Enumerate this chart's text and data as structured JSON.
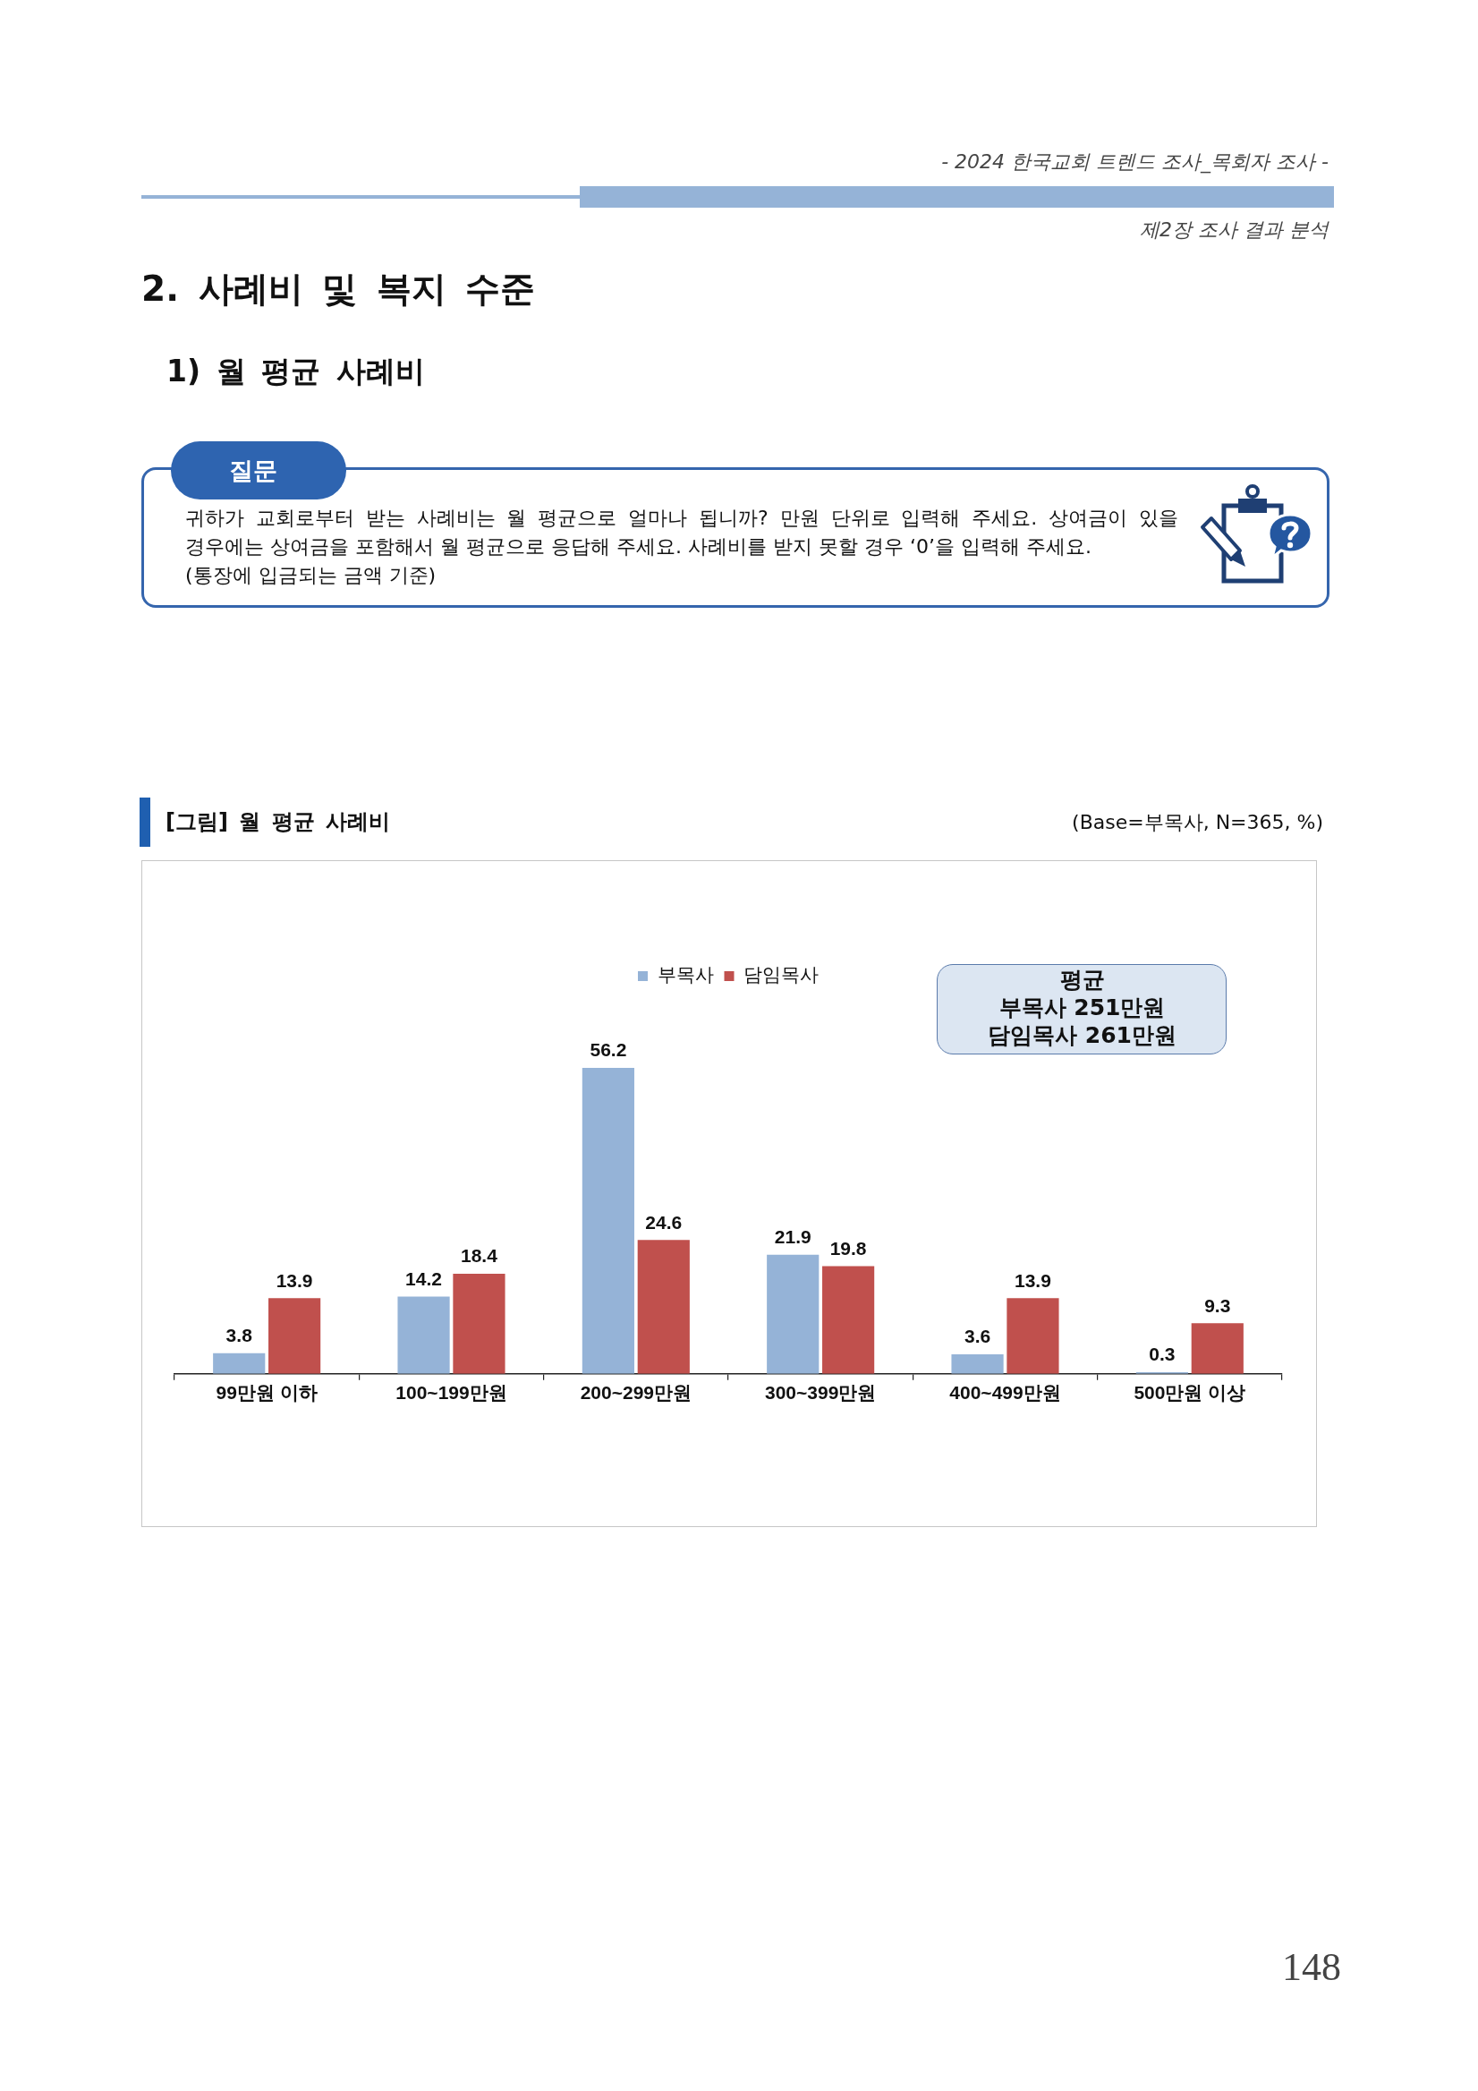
{
  "chart_data": {
    "type": "bar",
    "title": "[그림] 월 평균 사례비",
    "categories": [
      "99만원 이하",
      "100~199만원",
      "200~299만원",
      "300~399만원",
      "400~499만원",
      "500만원 이상"
    ],
    "series": [
      {
        "name": "부목사",
        "color": "#95b3d7",
        "values": [
          3.8,
          14.2,
          56.2,
          21.9,
          3.6,
          0.3
        ]
      },
      {
        "name": "담임목사",
        "color": "#c0504d",
        "values": [
          13.9,
          18.4,
          24.6,
          19.8,
          13.9,
          9.3
        ]
      }
    ],
    "data_labels": true,
    "legend": "top",
    "tick_labels": "x",
    "annotations": [
      "- 2024 한국교회 트렌드 조사_목회자 조사 -",
      "제2장 조사 결과 분석",
      "2. 사례비 및 복지 수준",
      "1) 월 평균 사례비",
      "질문",
      "귀하가 교회로부터 받는 사례비는 월 평균으로 얼마나 됩니까? 만원 단위로 입력해 주세요. 상여금이 있을 경우에는 상여금을 포함해서 월 평균으로 응답해 주세요. 사례비를 받지 못할 경우 ‘0’을 입력해 주세요.\n(통장에 입금되는 금액 기준)",
      "(Base=부목사, N=365, %)",
      "평균\n부목사 251만원\n담임목사 261만원",
      "148"
    ]
  }
}
